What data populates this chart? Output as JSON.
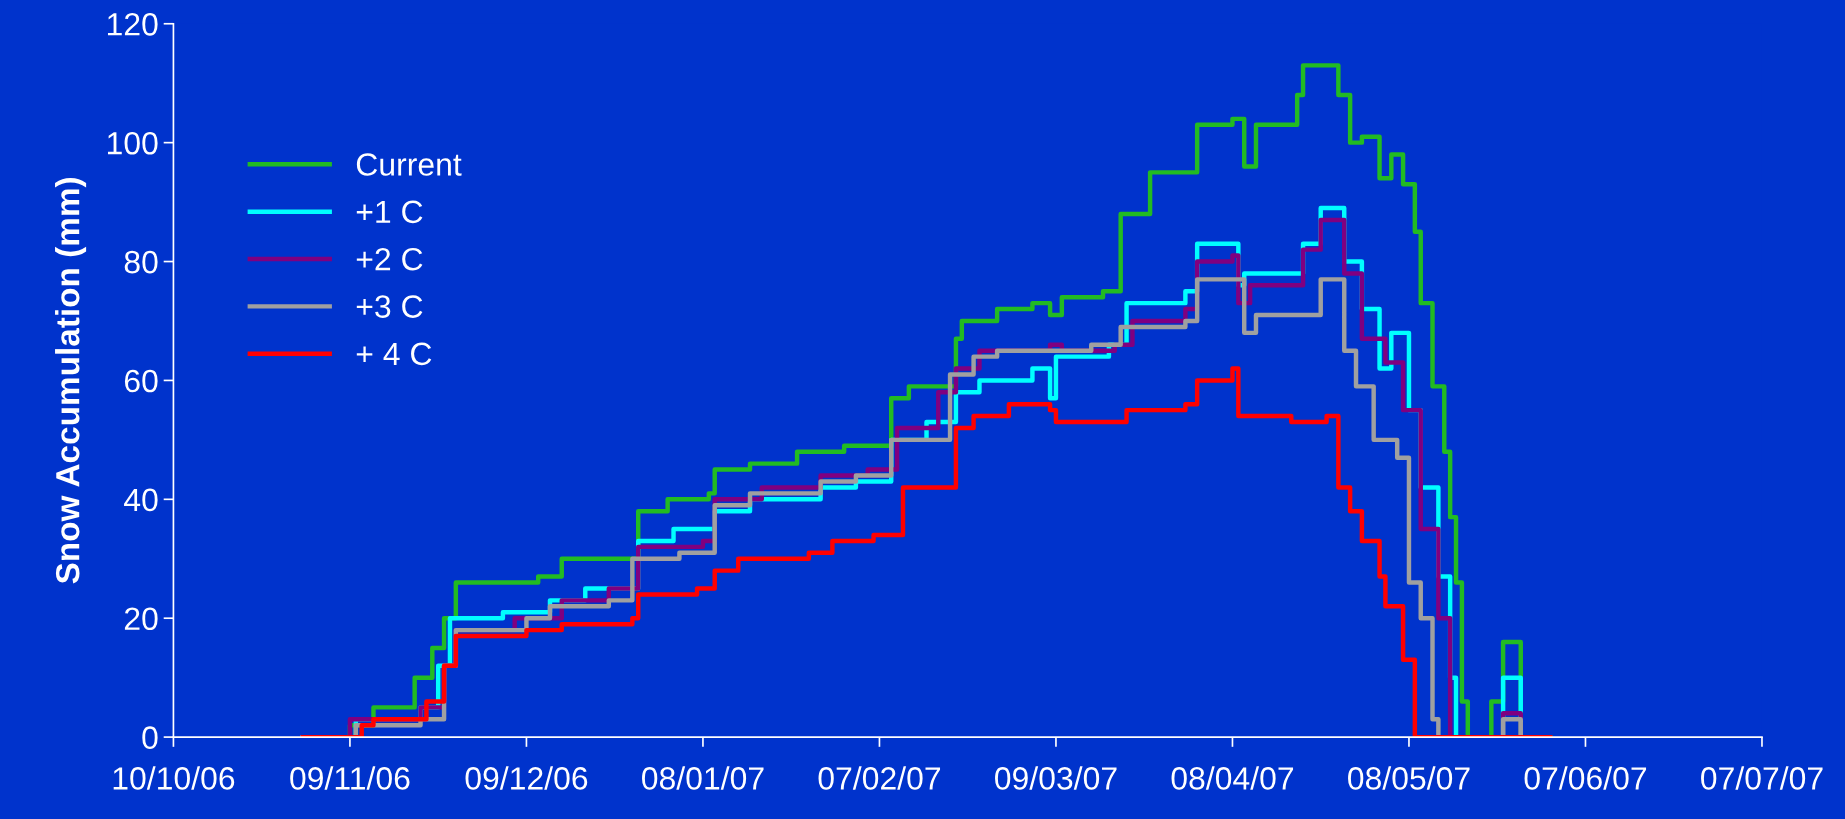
{
  "chart_data": {
    "type": "step",
    "ylabel": "Snow Accumulation (mm)",
    "legend": "top left",
    "grid": false,
    "xlim": [
      "2006-10-10",
      "2007-07-07"
    ],
    "xticks": [
      {
        "value": "2006-10-10",
        "label": "10/10/06"
      },
      {
        "value": "2006-11-09",
        "label": "09/11/06"
      },
      {
        "value": "2006-12-09",
        "label": "09/12/06"
      },
      {
        "value": "2007-01-08",
        "label": "08/01/07"
      },
      {
        "value": "2007-02-07",
        "label": "07/02/07"
      },
      {
        "value": "2007-03-09",
        "label": "09/03/07"
      },
      {
        "value": "2007-04-08",
        "label": "08/04/07"
      },
      {
        "value": "2007-05-08",
        "label": "08/05/07"
      },
      {
        "value": "2007-06-07",
        "label": "07/06/07"
      },
      {
        "value": "2007-07-07",
        "label": "07/07/07"
      }
    ],
    "ylim": [
      0,
      120
    ],
    "yticks": [
      0,
      20,
      40,
      60,
      80,
      100,
      120
    ],
    "series": [
      {
        "name": "Current",
        "color": "#22bb22",
        "x": [
          "2006-11-01",
          "2006-11-09",
          "2006-11-13",
          "2006-11-19",
          "2006-11-20",
          "2006-11-23",
          "2006-11-25",
          "2006-11-27",
          "2006-12-03",
          "2006-12-11",
          "2006-12-15",
          "2006-12-27",
          "2006-12-28",
          "2007-01-02",
          "2007-01-09",
          "2007-01-10",
          "2007-01-16",
          "2007-01-24",
          "2007-02-01",
          "2007-02-09",
          "2007-02-12",
          "2007-02-20",
          "2007-02-21",
          "2007-02-27",
          "2007-03-05",
          "2007-03-08",
          "2007-03-10",
          "2007-03-17",
          "2007-03-20",
          "2007-03-25",
          "2007-03-31",
          "2007-04-02",
          "2007-04-08",
          "2007-04-10",
          "2007-04-12",
          "2007-04-18",
          "2007-04-19",
          "2007-04-20",
          "2007-04-24",
          "2007-04-26",
          "2007-04-28",
          "2007-04-30",
          "2007-05-03",
          "2007-05-05",
          "2007-05-07",
          "2007-05-09",
          "2007-05-10",
          "2007-05-12",
          "2007-05-14",
          "2007-05-15",
          "2007-05-16",
          "2007-05-17",
          "2007-05-18",
          "2007-05-21",
          "2007-05-22",
          "2007-05-24",
          "2007-05-27",
          "2007-06-01"
        ],
        "values": [
          0,
          2,
          5,
          5,
          10,
          15,
          20,
          26,
          26,
          27,
          30,
          30,
          38,
          40,
          41,
          45,
          46,
          48,
          49,
          57,
          59,
          67,
          70,
          72,
          73,
          71,
          74,
          75,
          88,
          95,
          95,
          103,
          104,
          96,
          103,
          103,
          108,
          113,
          113,
          108,
          100,
          101,
          94,
          98,
          93,
          85,
          73,
          59,
          48,
          37,
          26,
          6,
          0,
          0,
          6,
          16,
          0,
          0
        ]
      },
      {
        "name": "+1 C",
        "color": "#00ffff",
        "x": [
          "2006-11-01",
          "2006-11-10",
          "2006-11-21",
          "2006-11-24",
          "2006-11-26",
          "2006-12-05",
          "2006-12-13",
          "2006-12-19",
          "2006-12-27",
          "2006-12-28",
          "2007-01-03",
          "2007-01-10",
          "2007-01-16",
          "2007-01-28",
          "2007-02-03",
          "2007-02-09",
          "2007-02-15",
          "2007-02-20",
          "2007-02-24",
          "2007-03-05",
          "2007-03-08",
          "2007-03-09",
          "2007-03-18",
          "2007-03-21",
          "2007-03-31",
          "2007-04-02",
          "2007-04-08",
          "2007-04-09",
          "2007-04-10",
          "2007-04-18",
          "2007-04-20",
          "2007-04-23",
          "2007-04-25",
          "2007-04-27",
          "2007-04-30",
          "2007-05-03",
          "2007-05-05",
          "2007-05-08",
          "2007-05-10",
          "2007-05-13",
          "2007-05-15",
          "2007-05-16",
          "2007-05-22",
          "2007-05-24",
          "2007-05-27"
        ],
        "values": [
          0,
          3,
          5,
          12,
          20,
          21,
          23,
          25,
          25,
          33,
          35,
          38,
          40,
          42,
          43,
          50,
          53,
          58,
          60,
          62,
          57,
          64,
          66,
          73,
          75,
          83,
          83,
          76,
          78,
          78,
          83,
          89,
          89,
          80,
          72,
          62,
          68,
          55,
          42,
          27,
          10,
          0,
          0,
          10,
          0
        ]
      },
      {
        "name": "+2 C",
        "color": "#800080",
        "x": [
          "2006-11-01",
          "2006-11-09",
          "2006-11-21",
          "2006-11-25",
          "2006-11-27",
          "2006-12-07",
          "2006-12-15",
          "2006-12-23",
          "2006-12-28",
          "2007-01-08",
          "2007-01-10",
          "2007-01-18",
          "2007-01-28",
          "2007-02-05",
          "2007-02-10",
          "2007-02-17",
          "2007-02-20",
          "2007-02-24",
          "2007-03-08",
          "2007-03-10",
          "2007-03-19",
          "2007-03-22",
          "2007-03-31",
          "2007-04-02",
          "2007-04-08",
          "2007-04-09",
          "2007-04-11",
          "2007-04-18",
          "2007-04-20",
          "2007-04-23",
          "2007-04-25",
          "2007-04-27",
          "2007-04-30",
          "2007-05-04",
          "2007-05-07",
          "2007-05-10",
          "2007-05-13",
          "2007-05-15",
          "2007-05-23",
          "2007-05-24",
          "2007-05-27"
        ],
        "values": [
          0,
          3,
          5,
          12,
          18,
          20,
          23,
          25,
          32,
          33,
          40,
          42,
          44,
          45,
          52,
          58,
          62,
          65,
          66,
          65,
          66,
          70,
          72,
          80,
          81,
          73,
          76,
          76,
          82,
          87,
          87,
          78,
          67,
          63,
          55,
          35,
          20,
          0,
          0,
          4,
          0
        ]
      },
      {
        "name": "+3 C",
        "color": "#a0a0a0",
        "x": [
          "2006-11-01",
          "2006-11-10",
          "2006-11-21",
          "2006-11-25",
          "2006-11-27",
          "2006-12-09",
          "2006-12-13",
          "2006-12-23",
          "2006-12-27",
          "2007-01-04",
          "2007-01-10",
          "2007-01-16",
          "2007-01-28",
          "2007-02-03",
          "2007-02-09",
          "2007-02-19",
          "2007-02-23",
          "2007-02-27",
          "2007-03-15",
          "2007-03-20",
          "2007-03-31",
          "2007-04-02",
          "2007-04-08",
          "2007-04-10",
          "2007-04-12",
          "2007-04-20",
          "2007-04-23",
          "2007-04-25",
          "2007-04-27",
          "2007-04-29",
          "2007-05-02",
          "2007-05-06",
          "2007-05-08",
          "2007-05-10",
          "2007-05-12",
          "2007-05-13",
          "2007-05-23",
          "2007-05-24",
          "2007-05-27"
        ],
        "values": [
          0,
          2,
          3,
          12,
          18,
          20,
          22,
          23,
          30,
          31,
          39,
          41,
          43,
          44,
          50,
          61,
          64,
          65,
          66,
          69,
          70,
          77,
          77,
          68,
          71,
          71,
          77,
          77,
          65,
          59,
          50,
          47,
          26,
          20,
          3,
          0,
          0,
          3,
          0
        ]
      },
      {
        "name": "+ 4 C",
        "color": "#ff0000",
        "x": [
          "2006-11-01",
          "2006-11-11",
          "2006-11-13",
          "2006-11-22",
          "2006-11-25",
          "2006-11-27",
          "2006-12-09",
          "2006-12-15",
          "2006-12-27",
          "2006-12-28",
          "2007-01-07",
          "2007-01-10",
          "2007-01-14",
          "2007-01-26",
          "2007-01-30",
          "2007-02-06",
          "2007-02-11",
          "2007-02-20",
          "2007-02-23",
          "2007-03-01",
          "2007-03-08",
          "2007-03-09",
          "2007-03-21",
          "2007-03-31",
          "2007-04-02",
          "2007-04-08",
          "2007-04-09",
          "2007-04-18",
          "2007-04-24",
          "2007-04-26",
          "2007-04-28",
          "2007-04-30",
          "2007-05-03",
          "2007-05-04",
          "2007-05-07",
          "2007-05-09",
          "2007-06-01"
        ],
        "values": [
          0,
          2,
          3,
          6,
          12,
          17,
          18,
          19,
          20,
          24,
          25,
          28,
          30,
          31,
          33,
          34,
          42,
          52,
          54,
          56,
          55,
          53,
          55,
          56,
          60,
          62,
          54,
          53,
          54,
          42,
          38,
          33,
          27,
          22,
          13,
          0,
          0
        ]
      }
    ]
  }
}
